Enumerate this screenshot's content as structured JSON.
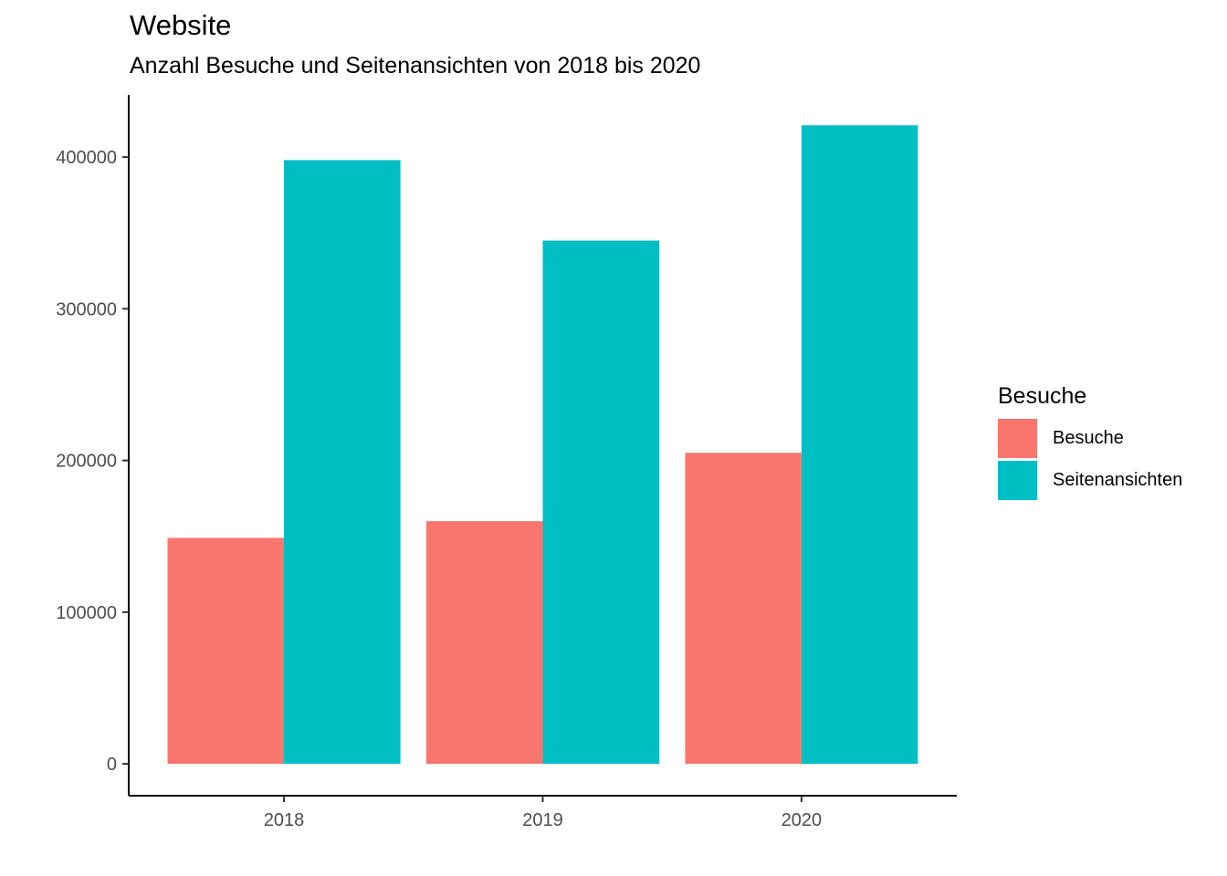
{
  "chart_data": {
    "type": "bar",
    "title": "Website",
    "subtitle": "Anzahl Besuche und Seitenansichten von 2018 bis 2020",
    "xlabel": "",
    "ylabel": "",
    "categories": [
      "2018",
      "2019",
      "2020"
    ],
    "series": [
      {
        "name": "Besuche",
        "color": "#F8766D",
        "values": [
          149000,
          160000,
          205000
        ]
      },
      {
        "name": "Seitenansichten",
        "color": "#00BFC4",
        "values": [
          398000,
          345000,
          421000
        ]
      }
    ],
    "ylim": [
      -21000,
      441000
    ],
    "yticks": [
      0,
      100000,
      200000,
      300000,
      400000
    ],
    "ytick_labels": [
      "0",
      "100000",
      "200000",
      "300000",
      "400000"
    ],
    "grid": false,
    "legend": {
      "title": "Besuche",
      "position": "right"
    }
  }
}
